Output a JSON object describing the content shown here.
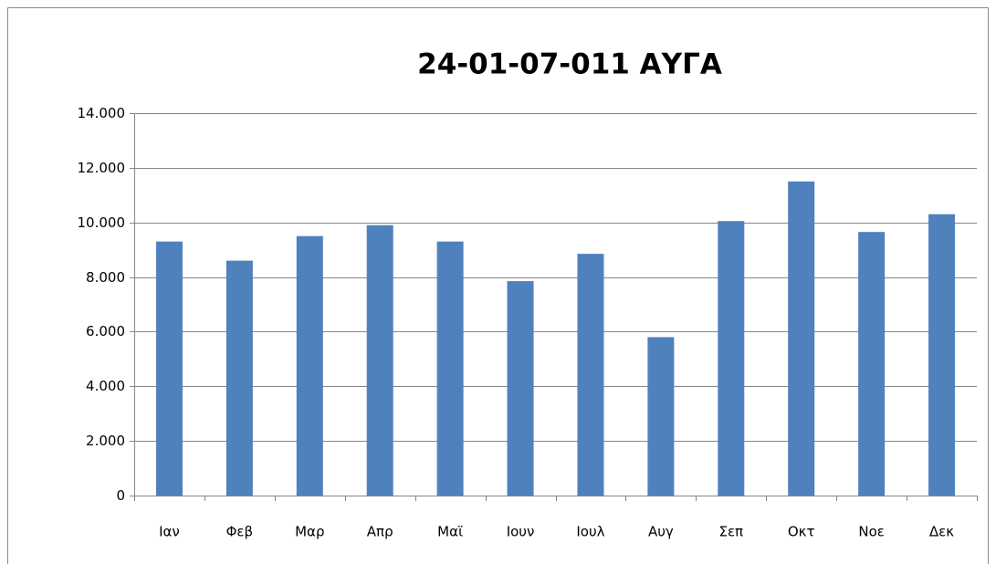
{
  "chart_data": {
    "type": "bar",
    "title": "24-01-07-011 ΑΥΓΑ",
    "categories": [
      "Ιαν",
      "Φεβ",
      "Μαρ",
      "Απρ",
      "Μαϊ",
      "Ιουν",
      "Ιουλ",
      "Αυγ",
      "Σεπ",
      "Οκτ",
      "Νοε",
      "Δεκ"
    ],
    "values": [
      9300,
      8600,
      9500,
      9900,
      9300,
      7850,
      8850,
      5800,
      10050,
      11500,
      9650,
      10300
    ],
    "color": "#4f81bd",
    "ylim": [
      0,
      14000
    ],
    "yticks": [
      0,
      {
        "value": 2000,
        "label": "2.000"
      },
      {
        "value": 4000,
        "label": "4.000"
      },
      {
        "value": 6000,
        "label": "6.000"
      },
      {
        "value": 8000,
        "label": "8.000"
      },
      {
        "value": 10000,
        "label": "10.000"
      },
      {
        "value": 12000,
        "label": "12.000"
      },
      {
        "value": 14000,
        "label": "14.000"
      }
    ],
    "grid": true
  }
}
